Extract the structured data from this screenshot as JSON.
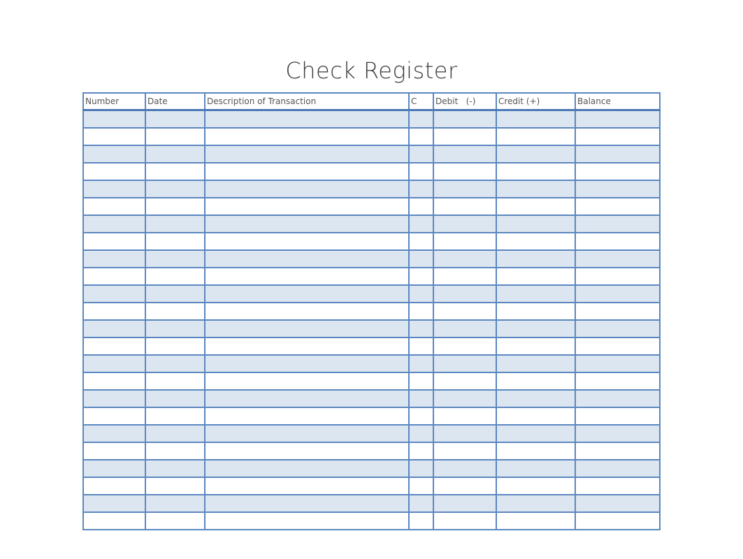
{
  "title": "Check Register",
  "columns": [
    "Number",
    "Date",
    "Description of Transaction",
    "C",
    "Debit   (-)",
    "Credit (+)",
    "Balance"
  ],
  "row_count": 24,
  "colors": {
    "border": "#5b87c0",
    "shaded_row": "#dce6f1"
  }
}
